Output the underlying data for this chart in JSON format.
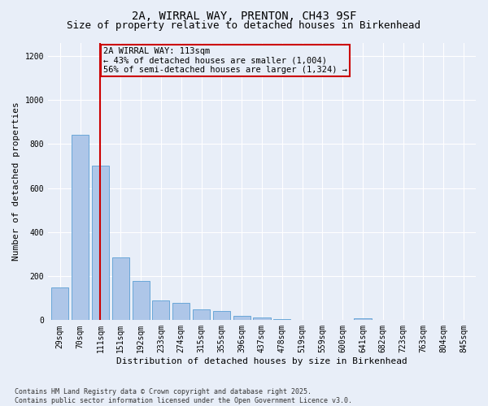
{
  "title_line1": "2A, WIRRAL WAY, PRENTON, CH43 9SF",
  "title_line2": "Size of property relative to detached houses in Birkenhead",
  "xlabel": "Distribution of detached houses by size in Birkenhead",
  "ylabel": "Number of detached properties",
  "categories": [
    "29sqm",
    "70sqm",
    "111sqm",
    "151sqm",
    "192sqm",
    "233sqm",
    "274sqm",
    "315sqm",
    "355sqm",
    "396sqm",
    "437sqm",
    "478sqm",
    "519sqm",
    "559sqm",
    "600sqm",
    "641sqm",
    "682sqm",
    "723sqm",
    "763sqm",
    "804sqm",
    "845sqm"
  ],
  "values": [
    150,
    840,
    700,
    285,
    180,
    90,
    80,
    50,
    40,
    20,
    12,
    5,
    2,
    0,
    0,
    10,
    0,
    0,
    0,
    0,
    0
  ],
  "bar_color": "#aec6e8",
  "bar_edge_color": "#5a9fd4",
  "vline_x_index": 2,
  "vline_color": "#cc0000",
  "annotation_line1": "2A WIRRAL WAY: 113sqm",
  "annotation_line2": "← 43% of detached houses are smaller (1,004)",
  "annotation_line3": "56% of semi-detached houses are larger (1,324) →",
  "annotation_box_color": "#cc0000",
  "ylim": [
    0,
    1260
  ],
  "yticks": [
    0,
    200,
    400,
    600,
    800,
    1000,
    1200
  ],
  "footnote": "Contains HM Land Registry data © Crown copyright and database right 2025.\nContains public sector information licensed under the Open Government Licence v3.0.",
  "background_color": "#e8eef8",
  "grid_color": "#ffffff",
  "title_fontsize": 10,
  "subtitle_fontsize": 9,
  "axis_label_fontsize": 8,
  "tick_fontsize": 7,
  "annotation_fontsize": 7.5,
  "footnote_fontsize": 6
}
